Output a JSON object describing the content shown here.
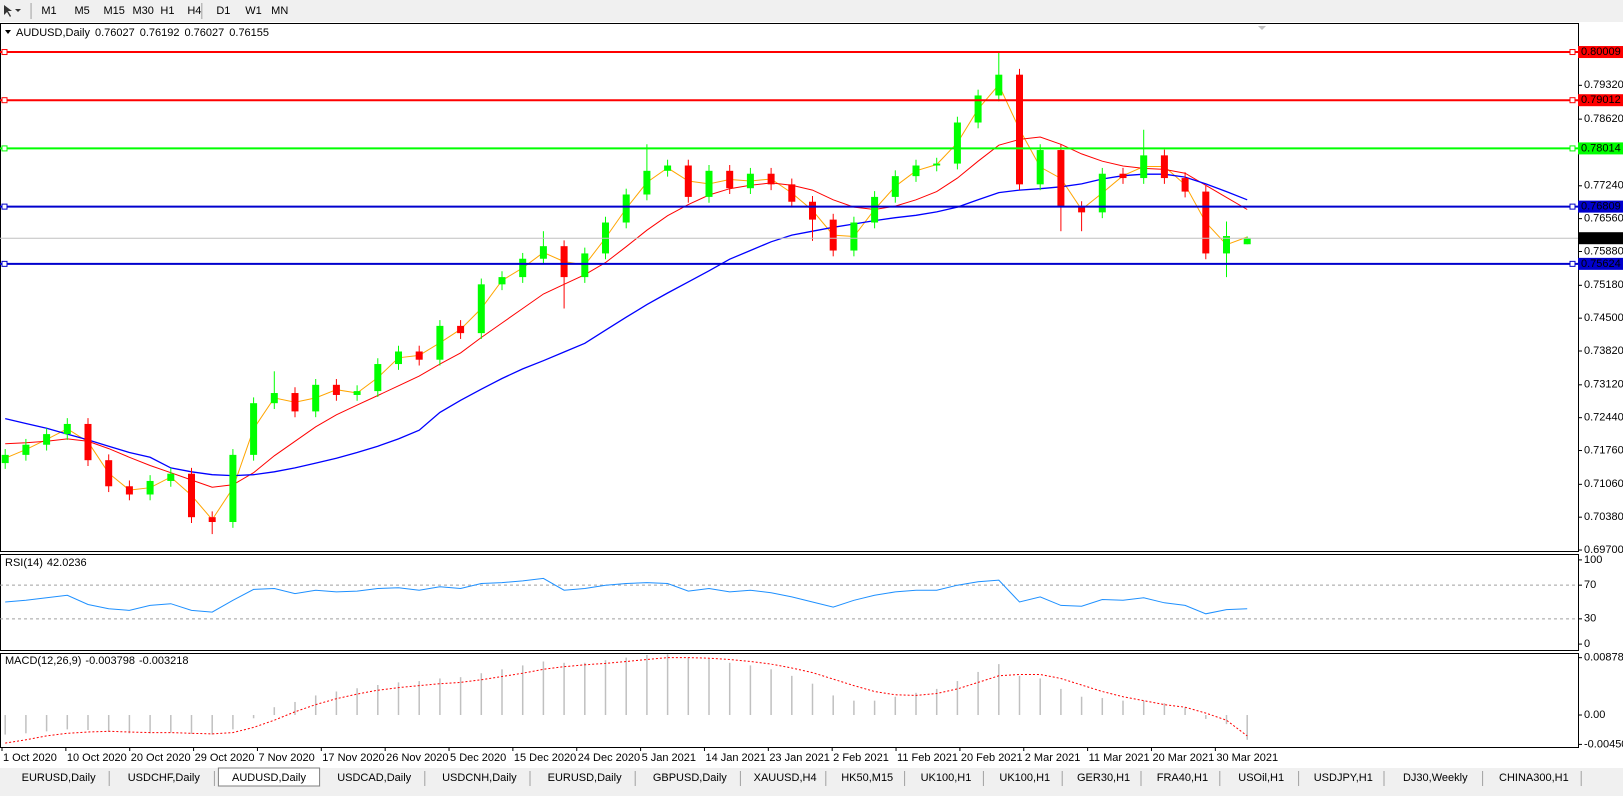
{
  "toolbar": {
    "timeframes": [
      "M1",
      "M5",
      "M15",
      "M30",
      "H1",
      "H4",
      "D1",
      "W1",
      "MN"
    ]
  },
  "chart_data": [
    {
      "type": "candlestick",
      "symbol": "AUDUSD,Daily",
      "quote": [
        0.76027,
        0.76192,
        0.76027,
        0.76155
      ],
      "up_color": "#00ff00",
      "down_color": "#ff0000",
      "open": [
        0.715,
        0.7167,
        0.7188,
        0.721,
        0.7231,
        0.7156,
        0.7102,
        0.7085,
        0.7113,
        0.7128,
        0.7038,
        0.7028,
        0.7167,
        0.7274,
        0.7295,
        0.7257,
        0.7312,
        0.7291,
        0.7299,
        0.7355,
        0.7381,
        0.7364,
        0.7434,
        0.7419,
        0.752,
        0.7535,
        0.7573,
        0.7599,
        0.7535,
        0.7584,
        0.7648,
        0.7706,
        0.7755,
        0.7766,
        0.7701,
        0.7755,
        0.7719,
        0.7749,
        0.7727,
        0.7691,
        0.7654,
        0.759,
        0.7648,
        0.7701,
        0.7744,
        0.7766,
        0.777,
        0.7855,
        0.7911,
        0.7954,
        0.7727,
        0.7798,
        0.768,
        0.7669,
        0.7749,
        0.774,
        0.7787,
        0.774,
        0.7712,
        0.7584,
        0.7603
      ],
      "high": [
        0.7179,
        0.72,
        0.7222,
        0.7243,
        0.7243,
        0.7168,
        0.7114,
        0.7125,
        0.714,
        0.714,
        0.705,
        0.7179,
        0.7286,
        0.734,
        0.7307,
        0.7324,
        0.7324,
        0.7311,
        0.7367,
        0.7393,
        0.7393,
        0.7446,
        0.7446,
        0.7532,
        0.7547,
        0.7585,
        0.763,
        0.7611,
        0.7596,
        0.766,
        0.7718,
        0.781,
        0.7778,
        0.7778,
        0.7767,
        0.7767,
        0.7761,
        0.7761,
        0.7739,
        0.7703,
        0.7666,
        0.766,
        0.7713,
        0.7756,
        0.7778,
        0.7782,
        0.7867,
        0.7923,
        0.8001,
        0.7966,
        0.781,
        0.781,
        0.7692,
        0.7761,
        0.7761,
        0.784,
        0.7799,
        0.7752,
        0.7724,
        0.765,
        0.7619
      ],
      "low": [
        0.7138,
        0.7155,
        0.7176,
        0.7198,
        0.7144,
        0.709,
        0.7073,
        0.7073,
        0.7101,
        0.7026,
        0.7003,
        0.7016,
        0.7155,
        0.7262,
        0.7245,
        0.7245,
        0.7279,
        0.7279,
        0.7287,
        0.7343,
        0.7352,
        0.7352,
        0.7407,
        0.7407,
        0.7508,
        0.7523,
        0.7561,
        0.747,
        0.7523,
        0.7572,
        0.7636,
        0.7694,
        0.7743,
        0.7689,
        0.7689,
        0.7707,
        0.7707,
        0.7715,
        0.7679,
        0.761,
        0.7578,
        0.7578,
        0.7636,
        0.7689,
        0.7732,
        0.7754,
        0.7758,
        0.7843,
        0.7899,
        0.7715,
        0.7715,
        0.763,
        0.763,
        0.7657,
        0.7728,
        0.7728,
        0.7728,
        0.77,
        0.7572,
        0.7535,
        0.7603
      ],
      "close": [
        0.7167,
        0.7188,
        0.721,
        0.7231,
        0.7156,
        0.7102,
        0.7085,
        0.7113,
        0.7128,
        0.7038,
        0.7028,
        0.7167,
        0.7274,
        0.7295,
        0.7257,
        0.7312,
        0.7291,
        0.7299,
        0.7355,
        0.7381,
        0.7364,
        0.7434,
        0.7419,
        0.752,
        0.7535,
        0.7573,
        0.7599,
        0.7535,
        0.7584,
        0.7648,
        0.7706,
        0.7755,
        0.7766,
        0.7701,
        0.7755,
        0.7719,
        0.7749,
        0.7727,
        0.7691,
        0.7654,
        0.759,
        0.7648,
        0.7701,
        0.7744,
        0.7766,
        0.777,
        0.7855,
        0.7911,
        0.7954,
        0.7727,
        0.7798,
        0.768,
        0.7669,
        0.7749,
        0.774,
        0.7787,
        0.774,
        0.7712,
        0.7584,
        0.762,
        0.7616
      ],
      "moving_averages": [
        {
          "color": "#ffa500",
          "values": [
            0.716,
            0.7178,
            0.7199,
            0.7221,
            0.7194,
            0.7129,
            0.7094,
            0.7099,
            0.7121,
            0.7083,
            0.7033,
            0.7098,
            0.7221,
            0.7285,
            0.7276,
            0.7285,
            0.7302,
            0.7295,
            0.7327,
            0.7368,
            0.7373,
            0.7399,
            0.7427,
            0.747,
            0.7528,
            0.7554,
            0.7586,
            0.7567,
            0.756,
            0.7616,
            0.7677,
            0.7731,
            0.7761,
            0.7734,
            0.7728,
            0.7737,
            0.7734,
            0.7738,
            0.7709,
            0.7673,
            0.7622,
            0.7619,
            0.7675,
            0.7723,
            0.7755,
            0.7768,
            0.7813,
            0.7883,
            0.7933,
            0.7841,
            0.7763,
            0.7739,
            0.7675,
            0.7709,
            0.7745,
            0.7764,
            0.7764,
            0.7726,
            0.7648,
            0.7602,
            0.7618
          ]
        },
        {
          "color": "#ff0000",
          "values": [
            0.719,
            0.7192,
            0.7195,
            0.72,
            0.7195,
            0.718,
            0.7162,
            0.7145,
            0.713,
            0.7115,
            0.71,
            0.7105,
            0.713,
            0.7165,
            0.7195,
            0.7225,
            0.725,
            0.727,
            0.729,
            0.731,
            0.733,
            0.7355,
            0.7378,
            0.741,
            0.744,
            0.747,
            0.75,
            0.752,
            0.754,
            0.7565,
            0.7598,
            0.7632,
            0.7662,
            0.7685,
            0.7705,
            0.7718,
            0.7725,
            0.773,
            0.7725,
            0.7715,
            0.7695,
            0.768,
            0.7675,
            0.7682,
            0.7695,
            0.7712,
            0.774,
            0.7775,
            0.7808,
            0.782,
            0.7825,
            0.781,
            0.779,
            0.7775,
            0.7765,
            0.776,
            0.7758,
            0.775,
            0.7725,
            0.77,
            0.7675
          ]
        },
        {
          "color": "#0000ff",
          "values": [
            0.7242,
            0.7232,
            0.7222,
            0.721,
            0.7198,
            0.7185,
            0.7172,
            0.7162,
            0.714,
            0.7132,
            0.7126,
            0.7124,
            0.7126,
            0.7132,
            0.714,
            0.715,
            0.716,
            0.7172,
            0.7185,
            0.72,
            0.7218,
            0.7255,
            0.728,
            0.7303,
            0.7325,
            0.7345,
            0.7362,
            0.738,
            0.7398,
            0.7425,
            0.7452,
            0.7478,
            0.7502,
            0.7525,
            0.7548,
            0.7572,
            0.759,
            0.7608,
            0.7622,
            0.763,
            0.7638,
            0.7645,
            0.7652,
            0.7658,
            0.7663,
            0.767,
            0.768,
            0.7695,
            0.771,
            0.7715,
            0.7718,
            0.7722,
            0.7728,
            0.7738,
            0.7745,
            0.7748,
            0.7748,
            0.7742,
            0.7728,
            0.7712,
            0.7695
          ]
        }
      ],
      "ylim": [
        0.6968,
        0.8061
      ],
      "yticks": [
        {
          "value": 0.7932,
          "label": "0.79320"
        },
        {
          "value": 0.7862,
          "label": "0.78620"
        },
        {
          "value": 0.7724,
          "label": "0.77240"
        },
        {
          "value": 0.7656,
          "label": "0.76560"
        },
        {
          "value": 0.7588,
          "label": "0.75880"
        },
        {
          "value": 0.7518,
          "label": "0.75180"
        },
        {
          "value": 0.745,
          "label": "0.74500"
        },
        {
          "value": 0.7382,
          "label": "0.73820"
        },
        {
          "value": 0.7312,
          "label": "0.73120"
        },
        {
          "value": 0.7244,
          "label": "0.72440"
        },
        {
          "value": 0.7176,
          "label": "0.71760"
        },
        {
          "value": 0.7106,
          "label": "0.71060"
        },
        {
          "value": 0.7038,
          "label": "0.70380"
        },
        {
          "value": 0.697,
          "label": "0.69700"
        }
      ],
      "levels": [
        {
          "value": 0.80009,
          "color": "#ff0000"
        },
        {
          "value": 0.79012,
          "color": "#ff0000"
        },
        {
          "value": 0.78014,
          "color": "#00ff00"
        },
        {
          "value": 0.76809,
          "color": "#0000cd"
        },
        {
          "value": 0.75624,
          "color": "#0000cd"
        }
      ],
      "x_labels": [
        "1 Oct 2020",
        "10 Oct 2020",
        "20 Oct 2020",
        "29 Oct 2020",
        "7 Nov 2020",
        "17 Nov 2020",
        "26 Nov 2020",
        "5 Dec 2020",
        "15 Dec 2020",
        "24 Dec 2020",
        "5 Jan 2021",
        "14 Jan 2021",
        "23 Jan 2021",
        "2 Feb 2021",
        "11 Feb 2021",
        "20 Feb 2021",
        "2 Mar 2021",
        "11 Mar 2021",
        "20 Mar 2021",
        "30 Mar 2021"
      ]
    },
    {
      "type": "line",
      "title": "RSI(14)",
      "value": 42.0236,
      "color": "#1e90ff",
      "values": [
        50,
        52,
        55,
        58,
        47,
        42,
        40,
        46,
        48,
        40,
        38,
        52,
        65,
        66,
        60,
        64,
        62,
        63,
        66,
        67,
        64,
        68,
        66,
        72,
        73,
        75,
        78,
        64,
        66,
        70,
        72,
        73,
        72,
        63,
        66,
        62,
        64,
        61,
        56,
        50,
        44,
        52,
        58,
        62,
        64,
        64,
        70,
        74,
        76,
        50,
        56,
        46,
        45,
        53,
        52,
        55,
        49,
        46,
        36,
        41,
        42
      ],
      "ylim": [
        -7,
        107
      ],
      "yticks": [
        100,
        70,
        30,
        0
      ],
      "levels": [
        70,
        30
      ]
    },
    {
      "type": "macd",
      "title": "MACD(12,26,9)",
      "main_value": -0.003798,
      "signal_value": -0.003218,
      "histogram_color": "#c0c0c0",
      "signal_color": "#ff0000",
      "histogram": [
        -0.003,
        -0.0028,
        -0.0025,
        -0.0022,
        -0.0023,
        -0.0026,
        -0.0028,
        -0.0028,
        -0.0027,
        -0.0029,
        -0.003,
        -0.0022,
        -0.0005,
        0.0012,
        0.002,
        0.003,
        0.0036,
        0.0041,
        0.0046,
        0.005,
        0.0052,
        0.0056,
        0.0058,
        0.0064,
        0.007,
        0.0076,
        0.0082,
        0.008,
        0.008,
        0.0084,
        0.0088,
        0.0092,
        0.0093,
        0.0088,
        0.0086,
        0.008,
        0.0076,
        0.007,
        0.006,
        0.0048,
        0.003,
        0.0022,
        0.0022,
        0.0028,
        0.0034,
        0.004,
        0.0052,
        0.0066,
        0.0078,
        0.006,
        0.0056,
        0.004,
        0.0028,
        0.0026,
        0.0022,
        0.0022,
        0.0018,
        0.0012,
        -0.0006,
        -0.0014,
        -0.0038
      ],
      "signal": [
        -0.0043,
        -0.0038,
        -0.0032,
        -0.0028,
        -0.0026,
        -0.0025,
        -0.0026,
        -0.0027,
        -0.0027,
        -0.0028,
        -0.0029,
        -0.0027,
        -0.0019,
        -0.0008,
        0.0005,
        0.0016,
        0.0025,
        0.0032,
        0.0038,
        0.0042,
        0.0045,
        0.0048,
        0.005,
        0.0054,
        0.0059,
        0.0064,
        0.007,
        0.0074,
        0.0077,
        0.0079,
        0.0082,
        0.0085,
        0.0088,
        0.0088,
        0.0087,
        0.0085,
        0.0082,
        0.0078,
        0.0072,
        0.0065,
        0.0055,
        0.0045,
        0.0036,
        0.0031,
        0.003,
        0.0033,
        0.004,
        0.005,
        0.006,
        0.0062,
        0.0062,
        0.0056,
        0.0046,
        0.0036,
        0.0028,
        0.0022,
        0.0016,
        0.0012,
        0.0003,
        -0.0008,
        -0.0032
      ],
      "ylim": [
        -0.0049,
        0.0095
      ],
      "yticks": [
        0.008785,
        {
          "value": 0,
          "label": "0.00"
        },
        -0.004503
      ]
    }
  ],
  "tabs": {
    "items": [
      "EURUSD,Daily",
      "USDCHF,Daily",
      "AUDUSD,Daily",
      "USDCAD,Daily",
      "USDCNH,Daily",
      "EURUSD,Daily",
      "GBPUSD,Daily",
      "XAUUSD,H4",
      "HK50,M15",
      "UK100,H1",
      "UK100,H1",
      "GER30,H1",
      "FRA40,H1",
      "USOil,H1",
      "USDJPY,H1",
      "DJ30,Weekly",
      "CHINA300,H1"
    ],
    "active": 2
  }
}
